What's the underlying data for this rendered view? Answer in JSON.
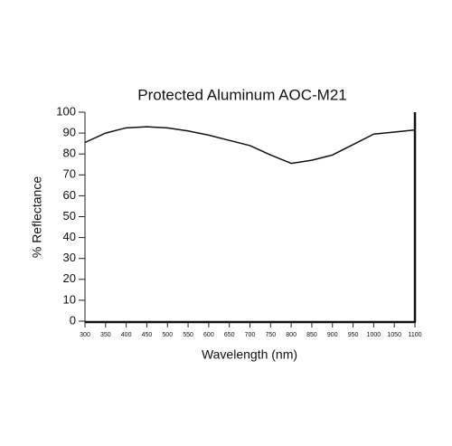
{
  "chart_data": {
    "type": "line",
    "title": "Protected Aluminum AOC-M21",
    "x_label": "Wavelength (nm)",
    "y_label": "% Reflectance",
    "x": [
      300,
      350,
      400,
      450,
      500,
      550,
      600,
      650,
      700,
      750,
      800,
      850,
      900,
      950,
      1000,
      1050,
      1100
    ],
    "values": [
      85.5,
      90,
      92.5,
      93,
      92.5,
      91,
      89,
      86.5,
      84,
      79.5,
      75.5,
      77,
      79.5,
      84.5,
      89.5,
      90.5,
      91.5
    ],
    "color": "#111111",
    "xlim": [
      300,
      1100
    ],
    "xticks": [
      300,
      350,
      400,
      450,
      500,
      550,
      600,
      650,
      700,
      750,
      800,
      850,
      900,
      950,
      1000,
      1050,
      1100
    ],
    "ylim": [
      0,
      100
    ],
    "yticks": [
      0,
      10,
      20,
      30,
      40,
      50,
      60,
      70,
      80,
      90,
      100
    ],
    "grid": false
  }
}
